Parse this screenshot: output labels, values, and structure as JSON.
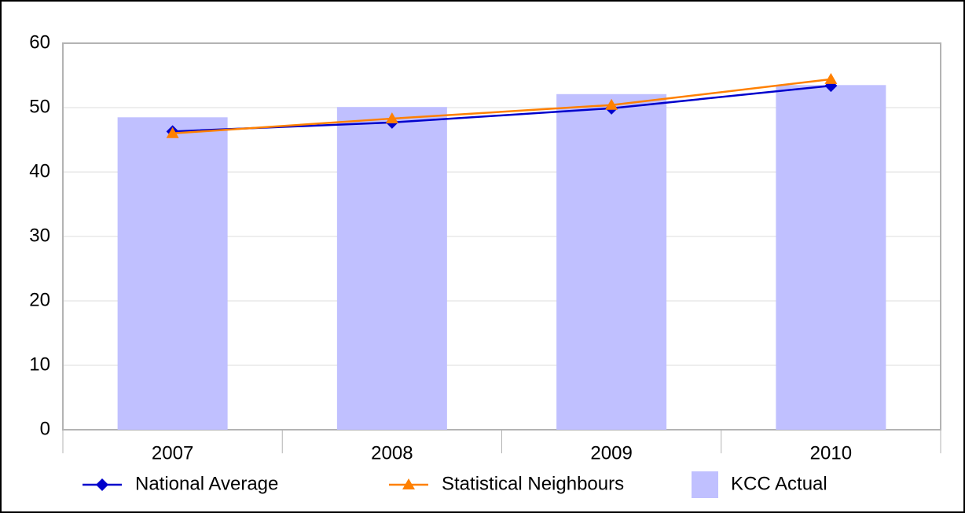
{
  "chart_data": {
    "type": "bar",
    "categories": [
      "2007",
      "2008",
      "2009",
      "2010"
    ],
    "series": [
      {
        "name": "National Average",
        "type": "line",
        "marker": "diamond",
        "color": "#0000cc",
        "values": [
          46.3,
          47.7,
          49.9,
          53.4
        ]
      },
      {
        "name": "Statistical Neighbours",
        "type": "line",
        "marker": "triangle",
        "color": "#ff8000",
        "values": [
          46.0,
          48.3,
          50.4,
          54.4
        ]
      },
      {
        "name": "KCC Actual",
        "type": "bar",
        "color": "#c0c0ff",
        "values": [
          48.5,
          50.1,
          52.1,
          53.5
        ]
      }
    ],
    "ylim": [
      0,
      60
    ],
    "yticks": [
      0,
      10,
      20,
      30,
      40,
      50,
      60
    ],
    "grid": true,
    "legend": "bottom"
  }
}
